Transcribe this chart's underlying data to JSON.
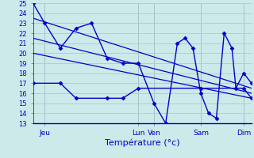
{
  "title": "Température (°c)",
  "background_color": "#cceaea",
  "grid_color": "#aacccc",
  "line_color": "#0000cc",
  "xlim": [
    0,
    28
  ],
  "ylim": [
    13,
    25
  ],
  "yticks": [
    13,
    14,
    15,
    16,
    17,
    18,
    19,
    20,
    21,
    22,
    23,
    24,
    25
  ],
  "xtick_positions": [
    1.5,
    13.5,
    15.5,
    21.5,
    27.0
  ],
  "xtick_labels": [
    "Jeu",
    "Lun",
    "Ven",
    "Sam",
    "Dim"
  ],
  "vline_positions": [
    1.5,
    13.5,
    15.5,
    21.5,
    27.0
  ],
  "series": [
    {
      "x": [
        0.0,
        1.5,
        3.5,
        5.5,
        7.5,
        9.5,
        11.5,
        13.5,
        15.5,
        17.0,
        18.5,
        19.5,
        20.5,
        21.5,
        22.5,
        23.5,
        24.5,
        25.5,
        26.0,
        27.0,
        28.0
      ],
      "y": [
        25,
        23,
        20.5,
        22.5,
        23.0,
        19.5,
        19.0,
        19.0,
        15.0,
        13.0,
        21.0,
        21.5,
        20.5,
        16.0,
        14.0,
        13.5,
        22.0,
        20.5,
        16.5,
        18.0,
        17.0
      ],
      "marker": "D",
      "markersize": 2.5,
      "linewidth": 1.0,
      "linestyle": "-"
    },
    {
      "x": [
        0.0,
        3.5,
        5.5,
        9.5,
        11.5,
        13.5,
        21.5,
        27.0,
        28.0
      ],
      "y": [
        17.0,
        17.0,
        15.5,
        15.5,
        15.5,
        16.5,
        16.5,
        16.5,
        15.5
      ],
      "marker": "D",
      "markersize": 2.5,
      "linewidth": 1.0,
      "linestyle": "-"
    },
    {
      "x": [
        0.0,
        28.0
      ],
      "y": [
        23.5,
        16.5
      ],
      "marker": null,
      "markersize": 0,
      "linewidth": 0.9,
      "linestyle": "-"
    },
    {
      "x": [
        0.0,
        28.0
      ],
      "y": [
        21.5,
        16.0
      ],
      "marker": null,
      "markersize": 0,
      "linewidth": 0.9,
      "linestyle": "-"
    },
    {
      "x": [
        0.0,
        28.0
      ],
      "y": [
        20.0,
        15.5
      ],
      "marker": null,
      "markersize": 0,
      "linewidth": 0.9,
      "linestyle": "-"
    }
  ]
}
